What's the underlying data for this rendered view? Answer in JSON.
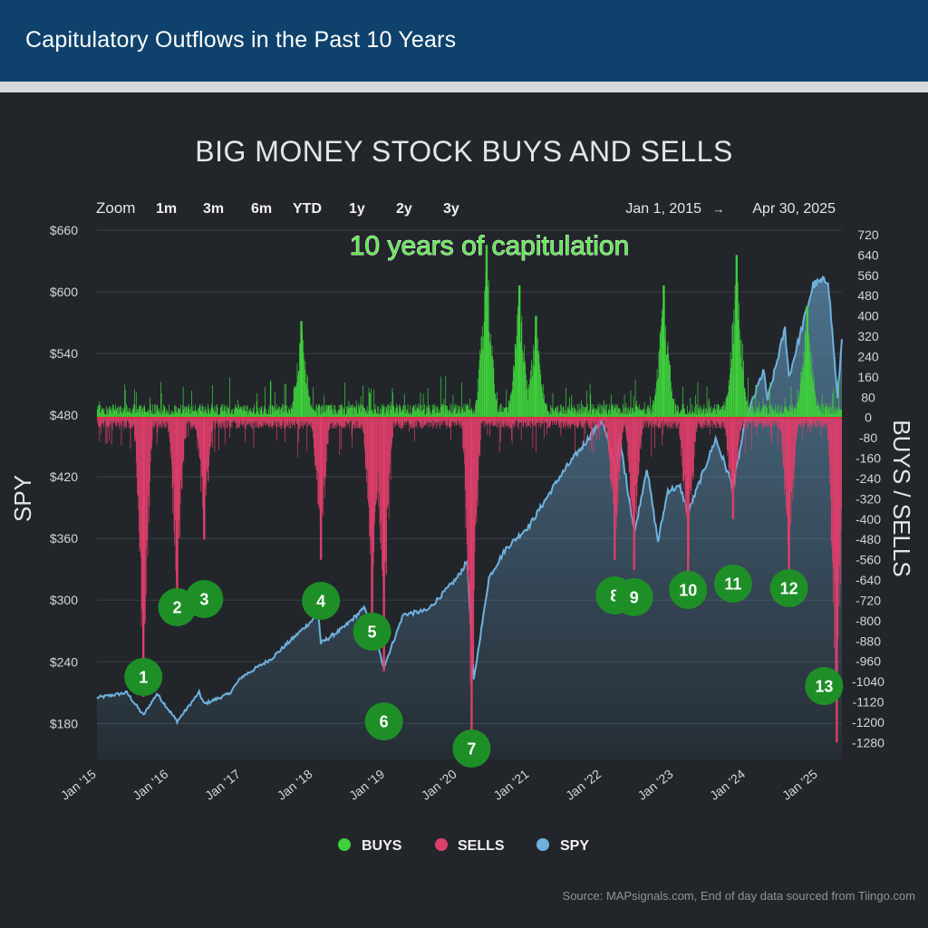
{
  "banner": {
    "title": "Capitulatory Outflows in the Past 10 Years"
  },
  "chart": {
    "title": "BIG MONEY STOCK BUYS AND SELLS",
    "zoom_label": "Zoom",
    "zoom_buttons": [
      "1m",
      "3m",
      "6m",
      "YTD",
      "1y",
      "2y",
      "3y"
    ],
    "range_start": "Jan 1, 2015",
    "range_arrow": "→",
    "range_end": "Apr 30, 2025",
    "annotation": "10 years of capitulation",
    "source": "Source: MAPsignals.com, End of day data sourced from Tiingo.com",
    "legend": [
      {
        "label": "BUYS",
        "color": "#3fcf3c"
      },
      {
        "label": "SELLS",
        "color": "#dc3f6a"
      },
      {
        "label": "SPY",
        "color": "#6fb1de"
      }
    ]
  },
  "colors": {
    "banner": "#0e426c",
    "background": "#22262b",
    "buys": "#3fcf3c",
    "sells": "#dc3f6a",
    "spy": "#6fb1de",
    "marker": "#1e8f27"
  },
  "chart_data": {
    "type": "area",
    "title": "BIG MONEY STOCK BUYS AND SELLS",
    "left_axis": {
      "label": "SPY",
      "ticks": [
        "$660",
        "$600",
        "$540",
        "$480",
        "$420",
        "$360",
        "$300",
        "$240",
        "$180"
      ],
      "range": [
        145,
        660
      ]
    },
    "right_axis": {
      "label": "BUYS / SELLS",
      "ticks": [
        "720",
        "640",
        "560",
        "480",
        "400",
        "320",
        "240",
        "160",
        "80",
        "0",
        "-80",
        "-160",
        "-240",
        "-320",
        "-400",
        "-480",
        "-560",
        "-640",
        "-720",
        "-800",
        "-880",
        "-960",
        "-1040",
        "-1120",
        "-1200",
        "-1280"
      ],
      "range": [
        -1300,
        720
      ]
    },
    "x_axis": {
      "ticks": [
        "Jan '15",
        "Jan '16",
        "Jan '17",
        "Jan '18",
        "Jan '19",
        "Jan '20",
        "Jan '21",
        "Jan '22",
        "Jan '23",
        "Jan '24",
        "Jan '25"
      ],
      "range": [
        "2015-01-01",
        "2025-04-30"
      ]
    },
    "grid": true,
    "legend_position": "bottom",
    "series": [
      {
        "name": "SPY",
        "points": [
          [
            "2015-01-01",
            205
          ],
          [
            "2015-06-01",
            210
          ],
          [
            "2015-08-24",
            188
          ],
          [
            "2015-11-01",
            209
          ],
          [
            "2016-02-11",
            182
          ],
          [
            "2016-06-01",
            210
          ],
          [
            "2016-06-27",
            199
          ],
          [
            "2016-11-01",
            209
          ],
          [
            "2017-01-01",
            225
          ],
          [
            "2017-06-01",
            243
          ],
          [
            "2018-01-26",
            286
          ],
          [
            "2018-02-08",
            258
          ],
          [
            "2018-06-01",
            273
          ],
          [
            "2018-09-20",
            293
          ],
          [
            "2018-12-24",
            235
          ],
          [
            "2019-04-01",
            286
          ],
          [
            "2019-08-01",
            290
          ],
          [
            "2019-12-31",
            322
          ],
          [
            "2020-02-19",
            338
          ],
          [
            "2020-03-23",
            222
          ],
          [
            "2020-06-08",
            322
          ],
          [
            "2020-09-01",
            350
          ],
          [
            "2020-12-31",
            373
          ],
          [
            "2021-06-01",
            420
          ],
          [
            "2021-12-31",
            475
          ],
          [
            "2022-03-15",
            426
          ],
          [
            "2022-03-29",
            460
          ],
          [
            "2022-06-16",
            366
          ],
          [
            "2022-08-16",
            429
          ],
          [
            "2022-10-12",
            357
          ],
          [
            "2022-12-01",
            407
          ],
          [
            "2023-02-01",
            410
          ],
          [
            "2023-03-13",
            385
          ],
          [
            "2023-07-31",
            457
          ],
          [
            "2023-10-27",
            410
          ],
          [
            "2023-12-29",
            475
          ],
          [
            "2024-03-28",
            523
          ],
          [
            "2024-04-19",
            495
          ],
          [
            "2024-07-16",
            564
          ],
          [
            "2024-08-05",
            517
          ],
          [
            "2024-12-06",
            607
          ],
          [
            "2025-02-19",
            612
          ],
          [
            "2025-04-08",
            496
          ],
          [
            "2025-04-30",
            554
          ]
        ]
      },
      {
        "name": "SELLS",
        "spikes": [
          [
            "2015-08-24",
            -1100
          ],
          [
            "2016-02-11",
            -720
          ],
          [
            "2016-06-27",
            -480
          ],
          [
            "2018-02-08",
            -560
          ],
          [
            "2018-10-25",
            -800
          ],
          [
            "2018-12-24",
            -1000
          ],
          [
            "2020-03-12",
            -1300
          ],
          [
            "2022-03-07",
            -560
          ],
          [
            "2022-06-13",
            -600
          ],
          [
            "2023-03-13",
            -640
          ],
          [
            "2023-10-27",
            -400
          ],
          [
            "2024-08-05",
            -640
          ],
          [
            "2025-04-04",
            -1280
          ]
        ]
      },
      {
        "name": "BUYS",
        "spikes": [
          [
            "2017-11-01",
            380
          ],
          [
            "2020-05-27",
            680
          ],
          [
            "2020-11-09",
            520
          ],
          [
            "2021-02-01",
            400
          ],
          [
            "2022-11-10",
            520
          ],
          [
            "2023-11-14",
            640
          ],
          [
            "2024-11-06",
            440
          ]
        ]
      }
    ],
    "markers": [
      {
        "label": "1",
        "date": "2015-08-24"
      },
      {
        "label": "2",
        "date": "2016-02-11"
      },
      {
        "label": "3",
        "date": "2016-06-27"
      },
      {
        "label": "4",
        "date": "2018-02-08"
      },
      {
        "label": "5",
        "date": "2018-10-25"
      },
      {
        "label": "6",
        "date": "2018-12-24"
      },
      {
        "label": "7",
        "date": "2020-03-12"
      },
      {
        "label": "8",
        "date": "2022-03-07"
      },
      {
        "label": "9",
        "date": "2022-06-13"
      },
      {
        "label": "10",
        "date": "2023-03-13"
      },
      {
        "label": "11",
        "date": "2023-10-27"
      },
      {
        "label": "12",
        "date": "2024-08-05"
      },
      {
        "label": "13",
        "date": "2025-04-04"
      }
    ]
  }
}
